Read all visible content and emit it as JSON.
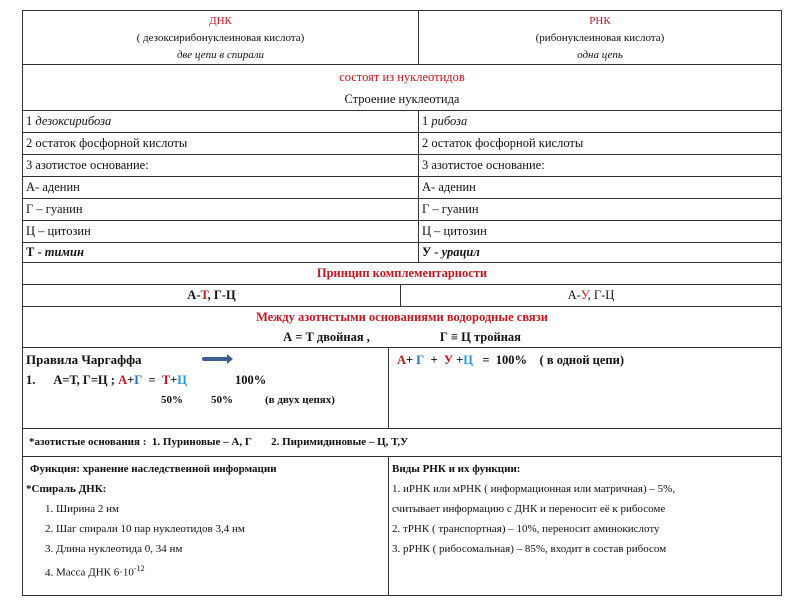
{
  "header": {
    "dna": {
      "title": "ДНК",
      "full": "( дезоксирибонуклеиновая кислота)",
      "chains": "две цепи в спирали"
    },
    "rna": {
      "title": "РНК",
      "full": "(рибонуклеиновая кислота)",
      "chains": "одна цепь"
    }
  },
  "consists": "состоят из нуклеотидов",
  "structure": "Строение нуклеотида",
  "rows": [
    {
      "dna_num": "1 ",
      "dna": "дезоксирибоза",
      "rna_num": "1 ",
      "rna": "рибоза"
    },
    {
      "dna": "2 остаток фосфорной кислоты",
      "rna": "2 остаток фосфорной кислоты"
    },
    {
      "dna": "3 азотистое основание:",
      "rna": "3 азотистое основание:"
    },
    {
      "dna": "А- аденин",
      "rna": "А- аденин"
    },
    {
      "dna": "Г – гуанин",
      "rna": "Г – гуанин"
    },
    {
      "dna": "Ц – цитозин",
      "rna": "Ц – цитозин"
    },
    {
      "dna_num": "Т - ",
      "dna": "тимин",
      "rna_num": "У - ",
      "rna": "урацил"
    }
  ],
  "complementarity": {
    "title": "Принцип комплементарности",
    "dna": [
      "А-",
      "Т",
      ",    Г-Ц"
    ],
    "rna": [
      "А-",
      "У",
      ",   Г-Ц"
    ]
  },
  "hydrogen": {
    "title": "Между азотистыми основаниями водородные связи",
    "at": "А = Т  двойная ,",
    "gc": "Г ≡ Ц тройная"
  },
  "chargaff": {
    "title": "Правила Чаргаффа",
    "num": "1.",
    "eq1": "А=Т,    Г=Ц ;",
    "a": "А",
    "plus1": "+",
    "g": "Г",
    "eq": "  =  ",
    "t": "Т",
    "plus2": "+",
    "c": "Ц",
    "total": "100%",
    "p1": "50%",
    "p2": "50%",
    "note": "(в двух цепях)",
    "rna": {
      "a": "А",
      "p1": "+ ",
      "g": "Г",
      "p2": "  +  ",
      "u": "У",
      "p3": " +",
      "c": "Ц",
      "rest": "   =  100%    ( в одной цепи)"
    }
  },
  "bases": "*азотистые основания :  1. Пуриновые – А, Г       2. Пиримидиновые – Ц, Т,У",
  "dna_function": {
    "title": "Функция: хранение наследственной информации",
    "helix": "*Спираль ДНК:",
    "items": [
      "Ширина 2 нм",
      "Шаг спирали 10 пар нуклеотидов 3,4 нм",
      "Длина нуклеотида 0, 34 нм",
      "Масса ДНК 6·10"
    ],
    "mass_exp": "-12"
  },
  "rna_types": {
    "title": "Виды РНК и их функции:",
    "lines": [
      "1. иРНК или мРНК  ( информационная или матричная) – 5%,",
      "считывает информацию с ДНК и переносит её к рибосоме",
      "2. тРНК  ( транспортная) – 10%, переносит аминокислоту",
      "3. рРНК  ( рибосомальная) – 85%, входит в состав рибосом"
    ]
  }
}
